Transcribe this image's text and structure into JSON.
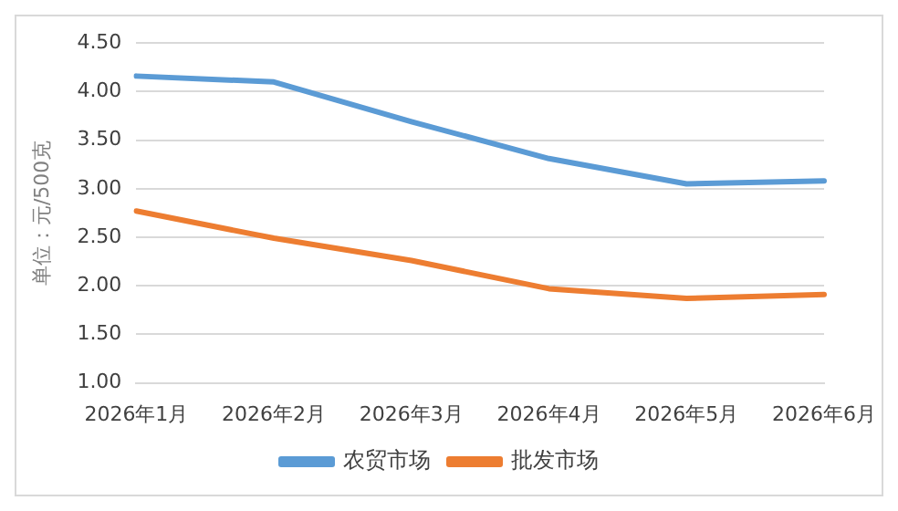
{
  "chart_data": {
    "type": "line",
    "ylabel": "单位：元/500克",
    "categories": [
      "2026年1月",
      "2026年2月",
      "2026年3月",
      "2026年4月",
      "2026年5月",
      "2026年6月"
    ],
    "series": [
      {
        "name": "农贸市场",
        "color": "#5b9bd5",
        "values": [
          4.16,
          4.1,
          3.69,
          3.31,
          3.05,
          3.08
        ]
      },
      {
        "name": "批发市场",
        "color": "#ed7d31",
        "values": [
          2.77,
          2.49,
          2.26,
          1.97,
          1.87,
          1.91
        ]
      }
    ],
    "ylim": [
      1,
      4.5
    ],
    "yticks": [
      {
        "value": 1,
        "label": "1.00"
      },
      {
        "value": 1.5,
        "label": "1.50"
      },
      {
        "value": 2,
        "label": "2.00"
      },
      {
        "value": 2.5,
        "label": "2.50"
      },
      {
        "value": 3,
        "label": "3.00"
      },
      {
        "value": 3.5,
        "label": "3.50"
      },
      {
        "value": 4,
        "label": "4.00"
      },
      {
        "value": 4.5,
        "label": "4.50"
      }
    ],
    "grid": "y",
    "legend": "bottom",
    "marker": "none",
    "line_style": "solid"
  }
}
